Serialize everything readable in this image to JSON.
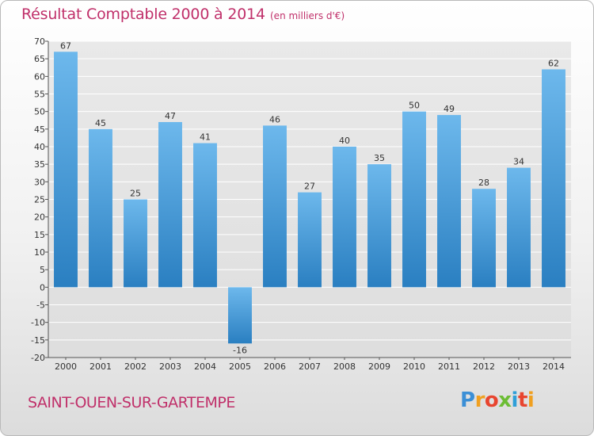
{
  "header": {
    "title": "Résultat Comptable 2000 à 2014",
    "unit": "(en milliers d'€)"
  },
  "footer": {
    "commune": "SAINT-OUEN-SUR-GARTEMPE",
    "logo": "Proxiti"
  },
  "colors": {
    "title": "#c0306a",
    "bar_light": "#6db8ec",
    "bar_dark": "#2a7fc1",
    "grid": "#ffffff",
    "plot_bg": "#e6e6e6"
  },
  "chart_data": {
    "type": "bar",
    "title": "Résultat Comptable 2000 à 2014",
    "xlabel": "",
    "ylabel": "",
    "categories": [
      "2000",
      "2001",
      "2002",
      "2003",
      "2004",
      "2005",
      "2006",
      "2007",
      "2008",
      "2009",
      "2010",
      "2011",
      "2012",
      "2013",
      "2014"
    ],
    "values": [
      67,
      45,
      25,
      47,
      41,
      -16,
      46,
      27,
      40,
      35,
      50,
      49,
      28,
      34,
      62
    ],
    "value_labels": [
      "67",
      "45",
      "25",
      "47",
      "41",
      "-16",
      "46",
      "27",
      "40",
      "35",
      "50",
      "49",
      "28",
      "34",
      "62"
    ],
    "ylim": [
      -20,
      70
    ],
    "yticks": [
      70,
      65,
      60,
      55,
      50,
      45,
      40,
      35,
      30,
      25,
      20,
      15,
      10,
      5,
      0,
      -5,
      -10,
      -15,
      -20
    ],
    "ytick_labels": [
      "70",
      "65",
      "60",
      "55",
      "50",
      "45",
      "40",
      "35",
      "30",
      "25",
      "20",
      "15",
      "10",
      "5",
      "0",
      "-5",
      "-10",
      "-15",
      "-20"
    ],
    "grid": true,
    "legend": "none"
  }
}
